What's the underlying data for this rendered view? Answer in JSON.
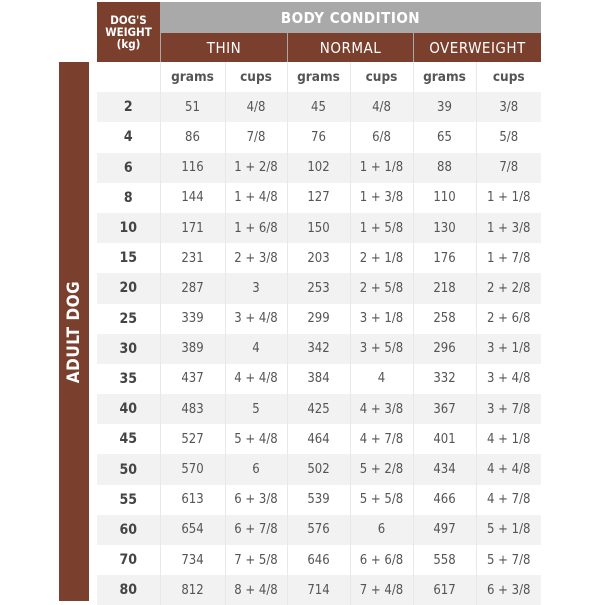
{
  "header": {
    "weight_label_lines": [
      "DOG'S",
      "WEIGHT",
      "(kg)"
    ],
    "body_condition": "BODY CONDITION",
    "conditions": [
      "THIN",
      "NORMAL",
      "OVERWEIGHT"
    ],
    "units": [
      "grams",
      "cups",
      "grams",
      "cups",
      "grams",
      "cups"
    ]
  },
  "side_label": "ADULT DOG",
  "colors": {
    "brown": "#7a3f2d",
    "gray": "#a9a9a9",
    "row_shade": "#f2f2f2"
  },
  "rows": [
    [
      "2",
      "51",
      "4/8",
      "45",
      "4/8",
      "39",
      "3/8"
    ],
    [
      "4",
      "86",
      "7/8",
      "76",
      "6/8",
      "65",
      "5/8"
    ],
    [
      "6",
      "116",
      "1 + 2/8",
      "102",
      "1 + 1/8",
      "88",
      "7/8"
    ],
    [
      "8",
      "144",
      "1 + 4/8",
      "127",
      "1 + 3/8",
      "110",
      "1 + 1/8"
    ],
    [
      "10",
      "171",
      "1 + 6/8",
      "150",
      "1 + 5/8",
      "130",
      "1 + 3/8"
    ],
    [
      "15",
      "231",
      "2 + 3/8",
      "203",
      "2 + 1/8",
      "176",
      "1 + 7/8"
    ],
    [
      "20",
      "287",
      "3",
      "253",
      "2 + 5/8",
      "218",
      "2 + 2/8"
    ],
    [
      "25",
      "339",
      "3 + 4/8",
      "299",
      "3 + 1/8",
      "258",
      "2 + 6/8"
    ],
    [
      "30",
      "389",
      "4",
      "342",
      "3 + 5/8",
      "296",
      "3 + 1/8"
    ],
    [
      "35",
      "437",
      "4 + 4/8",
      "384",
      "4",
      "332",
      "3 + 4/8"
    ],
    [
      "40",
      "483",
      "5",
      "425",
      "4 + 3/8",
      "367",
      "3 + 7/8"
    ],
    [
      "45",
      "527",
      "5 + 4/8",
      "464",
      "4 + 7/8",
      "401",
      "4 + 1/8"
    ],
    [
      "50",
      "570",
      "6",
      "502",
      "5 + 2/8",
      "434",
      "4 + 4/8"
    ],
    [
      "55",
      "613",
      "6 + 3/8",
      "539",
      "5 + 5/8",
      "466",
      "4 + 7/8"
    ],
    [
      "60",
      "654",
      "6 + 7/8",
      "576",
      "6",
      "497",
      "5 + 1/8"
    ],
    [
      "70",
      "734",
      "7 + 5/8",
      "646",
      "6 + 6/8",
      "558",
      "5 + 7/8"
    ],
    [
      "80",
      "812",
      "8 + 4/8",
      "714",
      "7 + 4/8",
      "617",
      "6 + 3/8"
    ]
  ]
}
